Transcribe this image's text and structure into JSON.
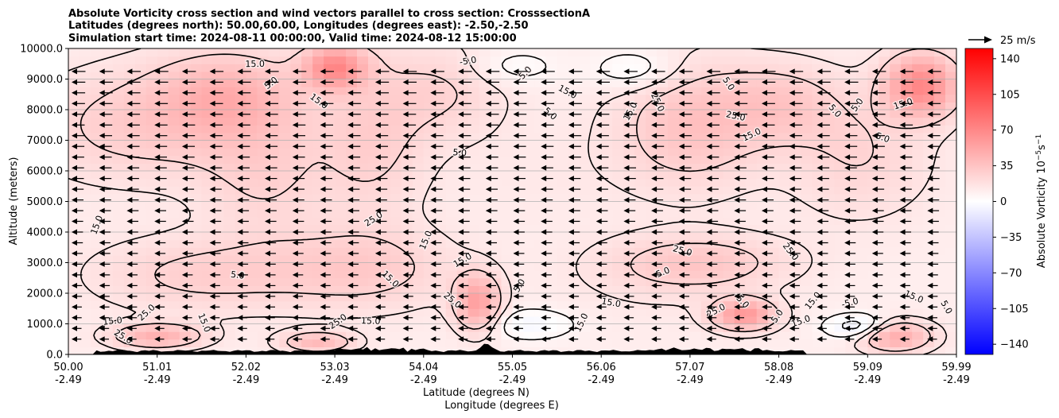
{
  "chart_data": {
    "type": "heatmap",
    "title_lines": [
      "Absolute Vorticity cross section and wind vectors parallel to cross section: CrosssectionA",
      "Latitudes (degrees north): 50.00,60.00, Longitudes (degrees east): -2.50,-2.50",
      "Simulation start time: 2024-08-11 00:00:00, Valid time: 2024-08-12 15:00:00"
    ],
    "ylabel": "Altitude (meters)",
    "xlabel_lines": [
      "Latitude (degrees N)",
      "Longitude (degrees E)"
    ],
    "ylim": [
      0,
      10000
    ],
    "y_ticks": [
      {
        "value": 0,
        "label": "0.0"
      },
      {
        "value": 1000,
        "label": "1000.0"
      },
      {
        "value": 2000,
        "label": "2000.0"
      },
      {
        "value": 3000,
        "label": "3000.0"
      },
      {
        "value": 4000,
        "label": "4000.0"
      },
      {
        "value": 5000,
        "label": "5000.0"
      },
      {
        "value": 6000,
        "label": "6000.0"
      },
      {
        "value": 7000,
        "label": "7000.0"
      },
      {
        "value": 8000,
        "label": "8000.0"
      },
      {
        "value": 9000,
        "label": "9000.0"
      },
      {
        "value": 10000,
        "label": "10000.0"
      }
    ],
    "x_ticks": [
      {
        "lat": "50.00",
        "lon": "-2.49"
      },
      {
        "lat": "51.01",
        "lon": "-2.49"
      },
      {
        "lat": "52.02",
        "lon": "-2.49"
      },
      {
        "lat": "53.03",
        "lon": "-2.49"
      },
      {
        "lat": "54.04",
        "lon": "-2.49"
      },
      {
        "lat": "55.05",
        "lon": "-2.49"
      },
      {
        "lat": "56.06",
        "lon": "-2.49"
      },
      {
        "lat": "57.07",
        "lon": "-2.49"
      },
      {
        "lat": "58.08",
        "lon": "-2.49"
      },
      {
        "lat": "59.09",
        "lon": "-2.49"
      },
      {
        "lat": "59.99",
        "lon": "-2.49"
      }
    ],
    "colorbar": {
      "label": "Absolute Vorticity 10",
      "label_exp": "−5",
      "label_unit": "s",
      "label_unit_exp": "−1",
      "range": [
        -150,
        150
      ],
      "ticks": [
        {
          "value": 140,
          "label": "140"
        },
        {
          "value": 105,
          "label": "105"
        },
        {
          "value": 70,
          "label": "70"
        },
        {
          "value": 35,
          "label": "35"
        },
        {
          "value": 0,
          "label": "0"
        },
        {
          "value": -35,
          "label": "−35"
        },
        {
          "value": -70,
          "label": "−70"
        },
        {
          "value": -105,
          "label": "−105"
        },
        {
          "value": -140,
          "label": "−140"
        }
      ],
      "colors": {
        "max": "#ff0000",
        "mid": "#ffffff",
        "min": "#0000ff"
      }
    },
    "quiver_key": {
      "label": "25 m/s",
      "speed": 25
    },
    "wind_direction": "southward (toward lower latitude)",
    "contour_levels": [
      -5.0,
      5.0,
      15.0,
      25.0
    ],
    "contour_labels": [
      {
        "text": "15.0",
        "lat": 50.35,
        "alt": 4200
      },
      {
        "text": "25.0",
        "lat": 53.45,
        "alt": 4350
      },
      {
        "text": "5.0",
        "lat": 54.4,
        "alt": 6500
      },
      {
        "text": "5.0",
        "lat": 55.4,
        "alt": 7800
      },
      {
        "text": "15.0",
        "lat": 56.35,
        "alt": 7900
      },
      {
        "text": "15.0",
        "lat": 57.7,
        "alt": 7100
      },
      {
        "text": "25.0",
        "lat": 57.5,
        "alt": 7700
      },
      {
        "text": "5.0",
        "lat": 58.6,
        "alt": 7900
      },
      {
        "text": "5.0",
        "lat": 58.9,
        "alt": 8100
      },
      {
        "text": "15.0",
        "lat": 59.4,
        "alt": 8100
      },
      {
        "text": "5.0",
        "lat": 59.15,
        "alt": 7000
      },
      {
        "text": "5.0",
        "lat": 57.4,
        "alt": 8800
      },
      {
        "text": "-5.0",
        "lat": 55.15,
        "alt": 9100
      },
      {
        "text": "-5.0",
        "lat": 54.5,
        "alt": 9500
      },
      {
        "text": "15.0",
        "lat": 55.6,
        "alt": 8500
      },
      {
        "text": "25.0",
        "lat": 56.6,
        "alt": 8200
      },
      {
        "text": "5.0",
        "lat": 52.3,
        "alt": 8800
      },
      {
        "text": "15.0",
        "lat": 52.1,
        "alt": 9400
      },
      {
        "text": "15.0",
        "lat": 52.8,
        "alt": 8200
      },
      {
        "text": "15.0",
        "lat": 54.05,
        "alt": 3700
      },
      {
        "text": "15.0",
        "lat": 54.45,
        "alt": 3000
      },
      {
        "text": "5.0",
        "lat": 51.9,
        "alt": 2500
      },
      {
        "text": "15.0",
        "lat": 53.6,
        "alt": 2400
      },
      {
        "text": "5.0",
        "lat": 55.1,
        "alt": 2200
      },
      {
        "text": "5.0",
        "lat": 56.7,
        "alt": 2600
      },
      {
        "text": "25.0",
        "lat": 56.9,
        "alt": 3300
      },
      {
        "text": "25.0",
        "lat": 58.1,
        "alt": 3300
      },
      {
        "text": "15.0",
        "lat": 58.4,
        "alt": 1700
      },
      {
        "text": "-5.0",
        "lat": 58.8,
        "alt": 1600
      },
      {
        "text": "15.0",
        "lat": 59.5,
        "alt": 1800
      },
      {
        "text": "5.0",
        "lat": 59.85,
        "alt": 1500
      },
      {
        "text": "25.0",
        "lat": 50.9,
        "alt": 1300
      },
      {
        "text": "15.0",
        "lat": 50.5,
        "alt": 1000
      },
      {
        "text": "25.0",
        "lat": 50.6,
        "alt": 500
      },
      {
        "text": "15.0",
        "lat": 51.5,
        "alt": 1000
      },
      {
        "text": "25.0",
        "lat": 53.05,
        "alt": 1000
      },
      {
        "text": "15.0",
        "lat": 53.4,
        "alt": 1000
      },
      {
        "text": "25.0",
        "lat": 54.3,
        "alt": 1700
      },
      {
        "text": "15.0",
        "lat": 55.8,
        "alt": 1000
      },
      {
        "text": "25.0",
        "lat": 57.3,
        "alt": 1350
      },
      {
        "text": "15.0",
        "lat": 56.1,
        "alt": 1600
      },
      {
        "text": "-5.0",
        "lat": 57.55,
        "alt": 1700
      },
      {
        "text": "5.0",
        "lat": 58.0,
        "alt": 1200
      },
      {
        "text": "15.0",
        "lat": 58.25,
        "alt": 1000
      }
    ],
    "blobs": [
      {
        "lat": 50.8,
        "alt": 7500,
        "w": 1.2,
        "h": 1800,
        "v": 20
      },
      {
        "lat": 51.8,
        "alt": 8500,
        "w": 0.8,
        "h": 1400,
        "v": 30
      },
      {
        "lat": 52.2,
        "alt": 6000,
        "w": 0.7,
        "h": 2200,
        "v": 16
      },
      {
        "lat": 53.0,
        "alt": 9400,
        "w": 0.35,
        "h": 700,
        "v": 55
      },
      {
        "lat": 53.4,
        "alt": 7000,
        "w": 0.6,
        "h": 2500,
        "v": 18
      },
      {
        "lat": 54.2,
        "alt": 8600,
        "w": 0.7,
        "h": 1500,
        "v": 15
      },
      {
        "lat": 55.0,
        "alt": 9400,
        "w": 0.5,
        "h": 600,
        "v": -10
      },
      {
        "lat": 56.4,
        "alt": 9300,
        "w": 0.5,
        "h": 700,
        "v": -14
      },
      {
        "lat": 57.0,
        "alt": 7500,
        "w": 0.8,
        "h": 2000,
        "v": 25
      },
      {
        "lat": 58.0,
        "alt": 8200,
        "w": 0.7,
        "h": 1300,
        "v": 20
      },
      {
        "lat": 58.9,
        "alt": 6500,
        "w": 0.8,
        "h": 2000,
        "v": 15
      },
      {
        "lat": 59.6,
        "alt": 8800,
        "w": 0.4,
        "h": 1000,
        "v": 60
      },
      {
        "lat": 55.4,
        "alt": 6000,
        "w": 1.3,
        "h": 1800,
        "v": 3
      },
      {
        "lat": 51.5,
        "alt": 2600,
        "w": 1.2,
        "h": 1200,
        "v": 18
      },
      {
        "lat": 53.3,
        "alt": 2800,
        "w": 1.0,
        "h": 1300,
        "v": 20
      },
      {
        "lat": 54.6,
        "alt": 1700,
        "w": 0.25,
        "h": 900,
        "v": 45
      },
      {
        "lat": 55.2,
        "alt": 1000,
        "w": 0.5,
        "h": 500,
        "v": -15
      },
      {
        "lat": 56.5,
        "alt": 2200,
        "w": 1.0,
        "h": 1300,
        "v": 4
      },
      {
        "lat": 57.6,
        "alt": 1300,
        "w": 0.35,
        "h": 500,
        "v": 50
      },
      {
        "lat": 58.9,
        "alt": 900,
        "w": 0.35,
        "h": 400,
        "v": -25
      },
      {
        "lat": 59.3,
        "alt": 600,
        "w": 0.4,
        "h": 500,
        "v": 40
      },
      {
        "lat": 57.1,
        "alt": 3000,
        "w": 1.0,
        "h": 900,
        "v": 22
      },
      {
        "lat": 51.0,
        "alt": 600,
        "w": 0.5,
        "h": 400,
        "v": 35
      },
      {
        "lat": 52.8,
        "alt": 400,
        "w": 0.4,
        "h": 350,
        "v": 30
      }
    ]
  }
}
